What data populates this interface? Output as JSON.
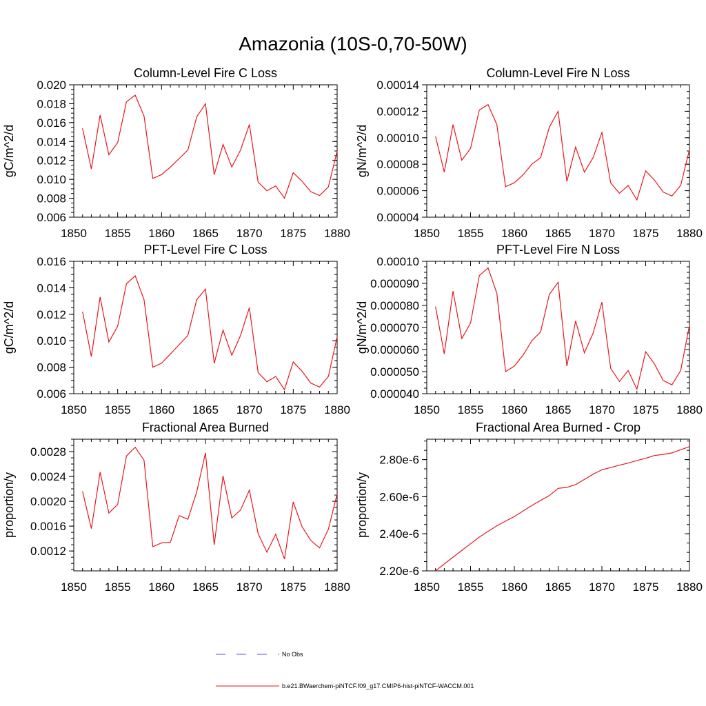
{
  "title": "Amazonia (10S-0,70-50W)",
  "chart_data": [
    {
      "type": "line",
      "title": "Column-Level Fire C Loss",
      "ylabel": "gC/m^2/d",
      "xlim": [
        1850,
        1880
      ],
      "ylim": [
        0.006,
        0.02
      ],
      "xticks": [
        1850,
        1855,
        1860,
        1865,
        1870,
        1875,
        1880
      ],
      "xtick_labels": [
        "1850",
        "1855",
        "1860",
        "1865",
        "1870",
        "1875",
        "1880"
      ],
      "yticks": [
        0.006,
        0.008,
        0.01,
        0.012,
        0.014,
        0.016,
        0.018,
        0.02
      ],
      "ytick_labels": [
        "0.006",
        "0.008",
        "0.010",
        "0.012",
        "0.014",
        "0.016",
        "0.018",
        "0.020"
      ],
      "series": [
        {
          "color": "#e8161b",
          "x": [
            1851,
            1852,
            1853,
            1854,
            1855,
            1856,
            1857,
            1858,
            1859,
            1860,
            1861,
            1862,
            1863,
            1864,
            1865,
            1866,
            1867,
            1868,
            1869,
            1870,
            1871,
            1872,
            1873,
            1874,
            1875,
            1876,
            1877,
            1878,
            1879,
            1880
          ],
          "y": [
            0.0154,
            0.0111,
            0.0168,
            0.0126,
            0.0139,
            0.0182,
            0.0189,
            0.0167,
            0.0101,
            0.0105,
            0.0113,
            0.0122,
            0.0131,
            0.0166,
            0.018,
            0.0105,
            0.0137,
            0.0113,
            0.0131,
            0.0158,
            0.0097,
            0.0088,
            0.0093,
            0.008,
            0.0107,
            0.0098,
            0.0087,
            0.0083,
            0.0092,
            0.013
          ]
        }
      ]
    },
    {
      "type": "line",
      "title": "Column-Level Fire N Loss",
      "ylabel": "gN/m^2/d",
      "xlim": [
        1850,
        1880
      ],
      "ylim": [
        4e-05,
        0.00014
      ],
      "xticks": [
        1850,
        1855,
        1860,
        1865,
        1870,
        1875,
        1880
      ],
      "xtick_labels": [
        "1850",
        "1855",
        "1860",
        "1865",
        "1870",
        "1875",
        "1880"
      ],
      "yticks": [
        4e-05,
        6e-05,
        8e-05,
        0.0001,
        0.00012,
        0.00014
      ],
      "ytick_labels": [
        "0.00004",
        "0.00006",
        "0.00008",
        "0.00010",
        "0.00012",
        "0.00014"
      ],
      "series": [
        {
          "color": "#e8161b",
          "x": [
            1851,
            1852,
            1853,
            1854,
            1855,
            1856,
            1857,
            1858,
            1859,
            1860,
            1861,
            1862,
            1863,
            1864,
            1865,
            1866,
            1867,
            1868,
            1869,
            1870,
            1871,
            1872,
            1873,
            1874,
            1875,
            1876,
            1877,
            1878,
            1879,
            1880
          ],
          "y": [
            0.000101,
            7.4e-05,
            0.00011,
            8.3e-05,
            9.2e-05,
            0.000121,
            0.000125,
            0.00011,
            6.3e-05,
            6.6e-05,
            7.2e-05,
            8e-05,
            8.5e-05,
            0.000108,
            0.00012,
            6.7e-05,
            9.3e-05,
            7.4e-05,
            8.5e-05,
            0.000104,
            6.6e-05,
            5.8e-05,
            6.4e-05,
            5.3e-05,
            7.5e-05,
            6.8e-05,
            5.9e-05,
            5.6e-05,
            6.4e-05,
            9.1e-05
          ]
        }
      ]
    },
    {
      "type": "line",
      "title": "PFT-Level Fire C Loss",
      "ylabel": "gC/m^2/d",
      "xlim": [
        1850,
        1880
      ],
      "ylim": [
        0.006,
        0.016
      ],
      "xticks": [
        1850,
        1855,
        1860,
        1865,
        1870,
        1875,
        1880
      ],
      "xtick_labels": [
        "1850",
        "1855",
        "1860",
        "1865",
        "1870",
        "1875",
        "1880"
      ],
      "yticks": [
        0.006,
        0.008,
        0.01,
        0.012,
        0.014,
        0.016
      ],
      "ytick_labels": [
        "0.006",
        "0.008",
        "0.010",
        "0.012",
        "0.014",
        "0.016"
      ],
      "series": [
        {
          "color": "#e8161b",
          "x": [
            1851,
            1852,
            1853,
            1854,
            1855,
            1856,
            1857,
            1858,
            1859,
            1860,
            1861,
            1862,
            1863,
            1864,
            1865,
            1866,
            1867,
            1868,
            1869,
            1870,
            1871,
            1872,
            1873,
            1874,
            1875,
            1876,
            1877,
            1878,
            1879,
            1880
          ],
          "y": [
            0.0122,
            0.0088,
            0.0133,
            0.0099,
            0.0111,
            0.0143,
            0.0149,
            0.0131,
            0.008,
            0.0083,
            0.009,
            0.0097,
            0.0104,
            0.0131,
            0.0139,
            0.0083,
            0.0108,
            0.0089,
            0.0104,
            0.0125,
            0.0076,
            0.0069,
            0.0073,
            0.0063,
            0.0084,
            0.0077,
            0.0068,
            0.0065,
            0.0073,
            0.0103
          ]
        }
      ]
    },
    {
      "type": "line",
      "title": "PFT-Level Fire N Loss",
      "ylabel": "gN/m^2/d",
      "xlim": [
        1850,
        1880
      ],
      "ylim": [
        4e-05,
        0.0001
      ],
      "xticks": [
        1850,
        1855,
        1860,
        1865,
        1870,
        1875,
        1880
      ],
      "xtick_labels": [
        "1850",
        "1855",
        "1860",
        "1865",
        "1870",
        "1875",
        "1880"
      ],
      "yticks": [
        4e-05,
        5e-05,
        6e-05,
        7e-05,
        8e-05,
        9e-05,
        0.0001
      ],
      "ytick_labels": [
        "0.000040",
        "0.000050",
        "0.000060",
        "0.000070",
        "0.000080",
        "0.000090",
        "0.00010"
      ],
      "series": [
        {
          "color": "#e8161b",
          "x": [
            1851,
            1852,
            1853,
            1854,
            1855,
            1856,
            1857,
            1858,
            1859,
            1860,
            1861,
            1862,
            1863,
            1864,
            1865,
            1866,
            1867,
            1868,
            1869,
            1870,
            1871,
            1872,
            1873,
            1874,
            1875,
            1876,
            1877,
            1878,
            1879,
            1880
          ],
          "y": [
            7.95e-05,
            5.8e-05,
            8.65e-05,
            6.5e-05,
            7.2e-05,
            9.35e-05,
            9.7e-05,
            8.55e-05,
            5e-05,
            5.25e-05,
            5.75e-05,
            6.4e-05,
            6.8e-05,
            8.5e-05,
            9.05e-05,
            5.25e-05,
            7.3e-05,
            5.85e-05,
            6.75e-05,
            8.15e-05,
            5.15e-05,
            4.55e-05,
            5.05e-05,
            4.2e-05,
            5.9e-05,
            5.35e-05,
            4.6e-05,
            4.4e-05,
            5.05e-05,
            7.1e-05
          ]
        }
      ]
    },
    {
      "type": "line",
      "title": "Fractional Area Burned",
      "ylabel": "proportion/y",
      "xlim": [
        1850,
        1880
      ],
      "ylim": [
        0.00088,
        0.003
      ],
      "xticks": [
        1850,
        1855,
        1860,
        1865,
        1870,
        1875,
        1880
      ],
      "xtick_labels": [
        "1850",
        "1855",
        "1860",
        "1865",
        "1870",
        "1875",
        "1880"
      ],
      "yticks": [
        0.0012,
        0.0016,
        0.002,
        0.0024,
        0.0028
      ],
      "ytick_labels": [
        "0.0012",
        "0.0016",
        "0.0020",
        "0.0024",
        "0.0028"
      ],
      "series": [
        {
          "color": "#e8161b",
          "x": [
            1851,
            1852,
            1853,
            1854,
            1855,
            1856,
            1857,
            1858,
            1859,
            1860,
            1861,
            1862,
            1863,
            1864,
            1865,
            1866,
            1867,
            1868,
            1869,
            1870,
            1871,
            1872,
            1873,
            1874,
            1875,
            1876,
            1877,
            1878,
            1879,
            1880
          ],
          "y": [
            0.00216,
            0.00156,
            0.00247,
            0.00181,
            0.00195,
            0.00273,
            0.00287,
            0.00266,
            0.00127,
            0.00133,
            0.00134,
            0.00177,
            0.00171,
            0.00215,
            0.00278,
            0.0013,
            0.00241,
            0.00173,
            0.00186,
            0.00218,
            0.00148,
            0.00118,
            0.00147,
            0.00107,
            0.00199,
            0.00159,
            0.00137,
            0.00125,
            0.00155,
            0.00212
          ]
        }
      ]
    },
    {
      "type": "line",
      "title": "Fractional Area Burned - Crop",
      "ylabel": "proportion/y",
      "xlim": [
        1850,
        1880
      ],
      "ylim": [
        2.2e-06,
        2.91e-06
      ],
      "xticks": [
        1850,
        1855,
        1860,
        1865,
        1870,
        1875,
        1880
      ],
      "xtick_labels": [
        "1850",
        "1855",
        "1860",
        "1865",
        "1870",
        "1875",
        "1880"
      ],
      "yticks": [
        2.2e-06,
        2.4e-06,
        2.6e-06,
        2.8e-06
      ],
      "ytick_labels": [
        "2.20e-6",
        "2.40e-6",
        "2.60e-6",
        "2.80e-6"
      ],
      "series": [
        {
          "color": "#e8161b",
          "x": [
            1851,
            1852,
            1853,
            1854,
            1855,
            1856,
            1857,
            1858,
            1859,
            1860,
            1861,
            1862,
            1863,
            1864,
            1865,
            1866,
            1867,
            1868,
            1869,
            1870,
            1871,
            1872,
            1873,
            1874,
            1875,
            1876,
            1877,
            1878,
            1879,
            1880
          ],
          "y": [
            2.2e-06,
            2.237e-06,
            2.274e-06,
            2.31e-06,
            2.346e-06,
            2.382e-06,
            2.413e-06,
            2.443e-06,
            2.468e-06,
            2.493e-06,
            2.523e-06,
            2.552e-06,
            2.58e-06,
            2.606e-06,
            2.645e-06,
            2.65e-06,
            2.665e-06,
            2.693e-06,
            2.721e-06,
            2.745e-06,
            2.757e-06,
            2.77e-06,
            2.781e-06,
            2.795e-06,
            2.807e-06,
            2.822e-06,
            2.828e-06,
            2.836e-06,
            2.853e-06,
            2.87e-06
          ]
        }
      ]
    }
  ],
  "legend": {
    "entries": [
      {
        "label": "No Obs",
        "color": "#5a5ad6",
        "style": "dashed"
      },
      {
        "label": "b.e21.BWaerchem-piNTCF.f09_g17.CMIP6-hist-piNTCF-WACCM.001",
        "color": "#e8161b",
        "style": "solid"
      }
    ]
  }
}
